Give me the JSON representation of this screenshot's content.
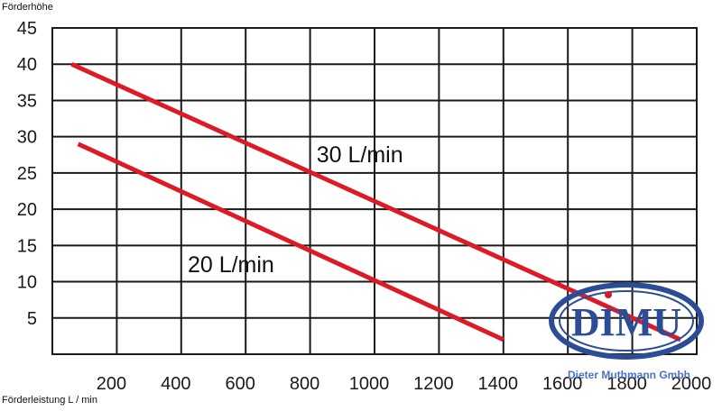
{
  "chart_data": {
    "type": "line",
    "ylabel": "Förderhöhe",
    "xlabel": "Förderleistung L / min",
    "xlim": [
      0,
      2000
    ],
    "ylim": [
      0,
      45
    ],
    "x_ticks": [
      "200",
      "400",
      "600",
      "800",
      "1000",
      "1200",
      "1400",
      "1600",
      "1800",
      "2000"
    ],
    "y_ticks": [
      "45",
      "40",
      "35",
      "30",
      "25",
      "20",
      "15",
      "10",
      "5"
    ],
    "grid": true,
    "series": [
      {
        "name": "30 L/min",
        "color": "#dd1b26",
        "points": [
          [
            60,
            40
          ],
          [
            1950,
            2
          ]
        ]
      },
      {
        "name": "20 L/min",
        "color": "#dd1b26",
        "points": [
          [
            80,
            29
          ],
          [
            1400,
            2
          ]
        ]
      }
    ],
    "annotations": [
      {
        "text": "30 L/min",
        "x": 820,
        "y": 26.5
      },
      {
        "text": "20 L/min",
        "x": 420,
        "y": 11.3
      }
    ]
  },
  "logo": {
    "name": "DIMU",
    "subtitle": "Dieter Muthmann Gmbh",
    "color": "#2b4c96",
    "accent": "#cc1f26"
  }
}
